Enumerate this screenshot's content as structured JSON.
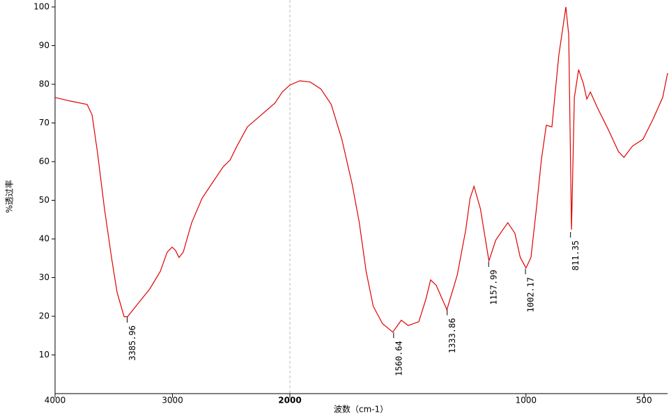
{
  "chart_data": {
    "type": "line",
    "x_label": "波数（cm-1）",
    "y_label": "%透过率",
    "xlim": [
      4000,
      400
    ],
    "ylim": [
      0,
      100
    ],
    "x_break": 2000,
    "xticks": [
      4000,
      3000,
      2000,
      1000,
      500
    ],
    "yticks": [
      10,
      20,
      30,
      40,
      50,
      60,
      70,
      80,
      90,
      100
    ],
    "series": [
      {
        "color": "#e00000",
        "x": [
          4000,
          3875,
          3727,
          3685,
          3638,
          3579,
          3519,
          3472,
          3412,
          3383,
          3312,
          3193,
          3104,
          3045,
          3003,
          2973,
          2944,
          2908,
          2837,
          2748,
          2659,
          2570,
          2510,
          2451,
          2362,
          2243,
          2125,
          2065,
          2000,
          1958,
          1914,
          1869,
          1825,
          1780,
          1736,
          1706,
          1677,
          1647,
          1608,
          1564,
          1549,
          1528,
          1499,
          1454,
          1424,
          1404,
          1380,
          1335,
          1291,
          1255,
          1237,
          1220,
          1193,
          1157,
          1128,
          1098,
          1077,
          1047,
          1024,
          1000,
          979,
          956,
          935,
          914,
          890,
          861,
          831,
          819,
          807,
          795,
          777,
          757,
          742,
          727,
          697,
          653,
          608,
          585,
          549,
          504,
          460,
          421,
          400
        ],
        "values": [
          76.6,
          75.7,
          74.8,
          72.1,
          62.2,
          47.8,
          35.2,
          26.2,
          19.9,
          19.9,
          22.6,
          27.1,
          31.6,
          36.6,
          37.9,
          37.0,
          35.2,
          36.6,
          44.2,
          50.5,
          54.6,
          58.6,
          60.4,
          64.0,
          69.0,
          72.1,
          75.2,
          78.0,
          79.8,
          80.9,
          80.6,
          78.8,
          74.8,
          65.8,
          54.1,
          44.2,
          31.6,
          22.6,
          18.1,
          15.9,
          17.2,
          19.0,
          17.6,
          18.6,
          24.4,
          29.4,
          28.0,
          21.7,
          30.7,
          42.4,
          50.5,
          53.6,
          47.8,
          34.3,
          39.7,
          42.4,
          44.2,
          41.5,
          35.2,
          32.5,
          35.2,
          47.8,
          60.4,
          69.4,
          69.0,
          87.4,
          100.0,
          92.8,
          42.4,
          76.6,
          83.8,
          80.2,
          76.2,
          78.0,
          73.9,
          68.5,
          62.6,
          61.1,
          64.0,
          65.8,
          71.2,
          76.6,
          82.9
        ]
      }
    ],
    "peaks": [
      {
        "x": 3385.96,
        "y": 19.8
      },
      {
        "x": 1560.64,
        "y": 15.8
      },
      {
        "x": 1333.86,
        "y": 21.7
      },
      {
        "x": 1157.99,
        "y": 34.2
      },
      {
        "x": 1002.17,
        "y": 32.3
      },
      {
        "x": 811.35,
        "y": 41.8
      }
    ]
  }
}
